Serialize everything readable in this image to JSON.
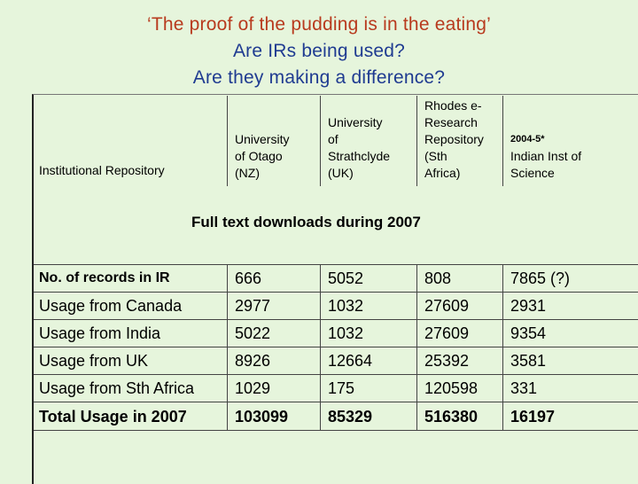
{
  "title": {
    "line1": "‘The proof of the pudding is in the eating’",
    "line2": "Are IRs being used?",
    "line3": "Are they making a difference?"
  },
  "header": {
    "corner_label": "Institutional Repository",
    "columns": [
      {
        "lines": [
          "University",
          "of Otago",
          "(NZ)"
        ]
      },
      {
        "lines": [
          "University",
          "of",
          "Strathclyde",
          "(UK)"
        ]
      },
      {
        "lines": [
          "Rhodes e-",
          "Research",
          "Repository",
          "(Sth",
          "Africa)"
        ]
      },
      {
        "note": "2004-5*",
        "lines": [
          "Indian Inst of",
          "Science"
        ]
      }
    ]
  },
  "subtitle": "Full text downloads during 2007",
  "rows": [
    {
      "label": "No. of records in IR",
      "values": [
        "666",
        "5052",
        "808",
        "7865 (?)"
      ]
    },
    {
      "label": "Usage from Canada",
      "values": [
        "2977",
        "1032",
        "27609",
        "2931"
      ]
    },
    {
      "label": "Usage from India",
      "values": [
        "5022",
        "1032",
        "27609",
        "9354"
      ]
    },
    {
      "label": "Usage from UK",
      "values": [
        "8926",
        "12664",
        "25392",
        "3581"
      ]
    },
    {
      "label": "Usage from Sth Africa",
      "values": [
        "1029",
        "175",
        "120598",
        "331"
      ]
    },
    {
      "label": "Total Usage in 2007",
      "values": [
        "103099",
        "85329",
        "516380",
        "16197"
      ]
    }
  ]
}
